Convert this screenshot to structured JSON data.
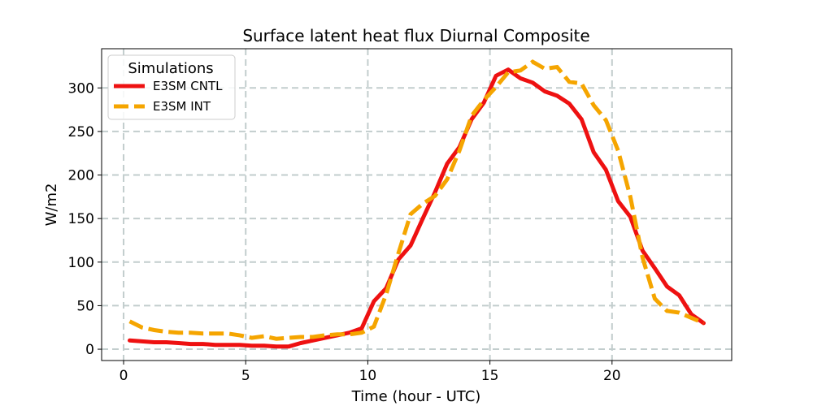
{
  "chart_data": {
    "type": "line",
    "title": "Surface latent heat flux Diurnal Composite",
    "xlabel": "Time (hour - UTC)",
    "ylabel": "W/m2",
    "xlim": [
      -0.9,
      24.9
    ],
    "ylim": [
      -13,
      345
    ],
    "xticks": [
      0,
      5,
      10,
      15,
      20
    ],
    "yticks": [
      0,
      50,
      100,
      150,
      200,
      250,
      300
    ],
    "grid": true,
    "legend": {
      "title": "Simulations",
      "placement": "top-left"
    },
    "series": [
      {
        "name": "E3SM CNTL",
        "color": "#ee1111",
        "style": "solid",
        "x": [
          0.25,
          0.75,
          1.25,
          1.75,
          2.25,
          2.75,
          3.25,
          3.75,
          4.25,
          4.75,
          5.25,
          5.75,
          6.25,
          6.75,
          7.25,
          7.75,
          8.25,
          8.75,
          9.25,
          9.75,
          10.25,
          10.75,
          11.25,
          11.75,
          12.25,
          12.75,
          13.25,
          13.75,
          14.25,
          14.75,
          15.25,
          15.75,
          16.25,
          16.75,
          17.25,
          17.75,
          18.25,
          18.75,
          19.25,
          19.75,
          20.25,
          20.75,
          21.25,
          21.75,
          22.25,
          22.75,
          23.25,
          23.75
        ],
        "y": [
          10,
          9,
          8,
          8,
          7,
          6,
          6,
          5,
          5,
          5,
          4,
          4,
          3,
          3,
          7,
          10,
          13,
          16,
          19,
          24,
          55,
          70,
          103,
          119,
          150,
          180,
          213,
          232,
          264,
          283,
          314,
          321,
          311,
          306,
          296,
          291,
          282,
          264,
          226,
          206,
          170,
          152,
          113,
          93,
          72,
          62,
          40,
          30
        ]
      },
      {
        "name": "E3SM INT",
        "color": "#f5a500",
        "style": "dashed",
        "x": [
          0.25,
          0.75,
          1.25,
          1.75,
          2.25,
          2.75,
          3.25,
          3.75,
          4.25,
          4.75,
          5.25,
          5.75,
          6.25,
          6.75,
          7.25,
          7.75,
          8.25,
          8.75,
          9.25,
          9.75,
          10.25,
          10.75,
          11.25,
          11.75,
          12.25,
          12.75,
          13.25,
          13.75,
          14.25,
          14.75,
          15.25,
          15.75,
          16.25,
          16.75,
          17.25,
          17.75,
          18.25,
          18.75,
          19.25,
          19.75,
          20.25,
          20.75,
          21.25,
          21.75,
          22.25,
          22.75,
          23.25,
          23.75
        ],
        "y": [
          32,
          25,
          22,
          20,
          19,
          19,
          18,
          18,
          18,
          16,
          13,
          15,
          12,
          13,
          14,
          14,
          16,
          17,
          17,
          19,
          26,
          63,
          110,
          155,
          167,
          176,
          195,
          228,
          268,
          286,
          301,
          318,
          320,
          330,
          322,
          324,
          307,
          305,
          280,
          263,
          228,
          175,
          105,
          58,
          44,
          42,
          36,
          30
        ]
      }
    ]
  }
}
